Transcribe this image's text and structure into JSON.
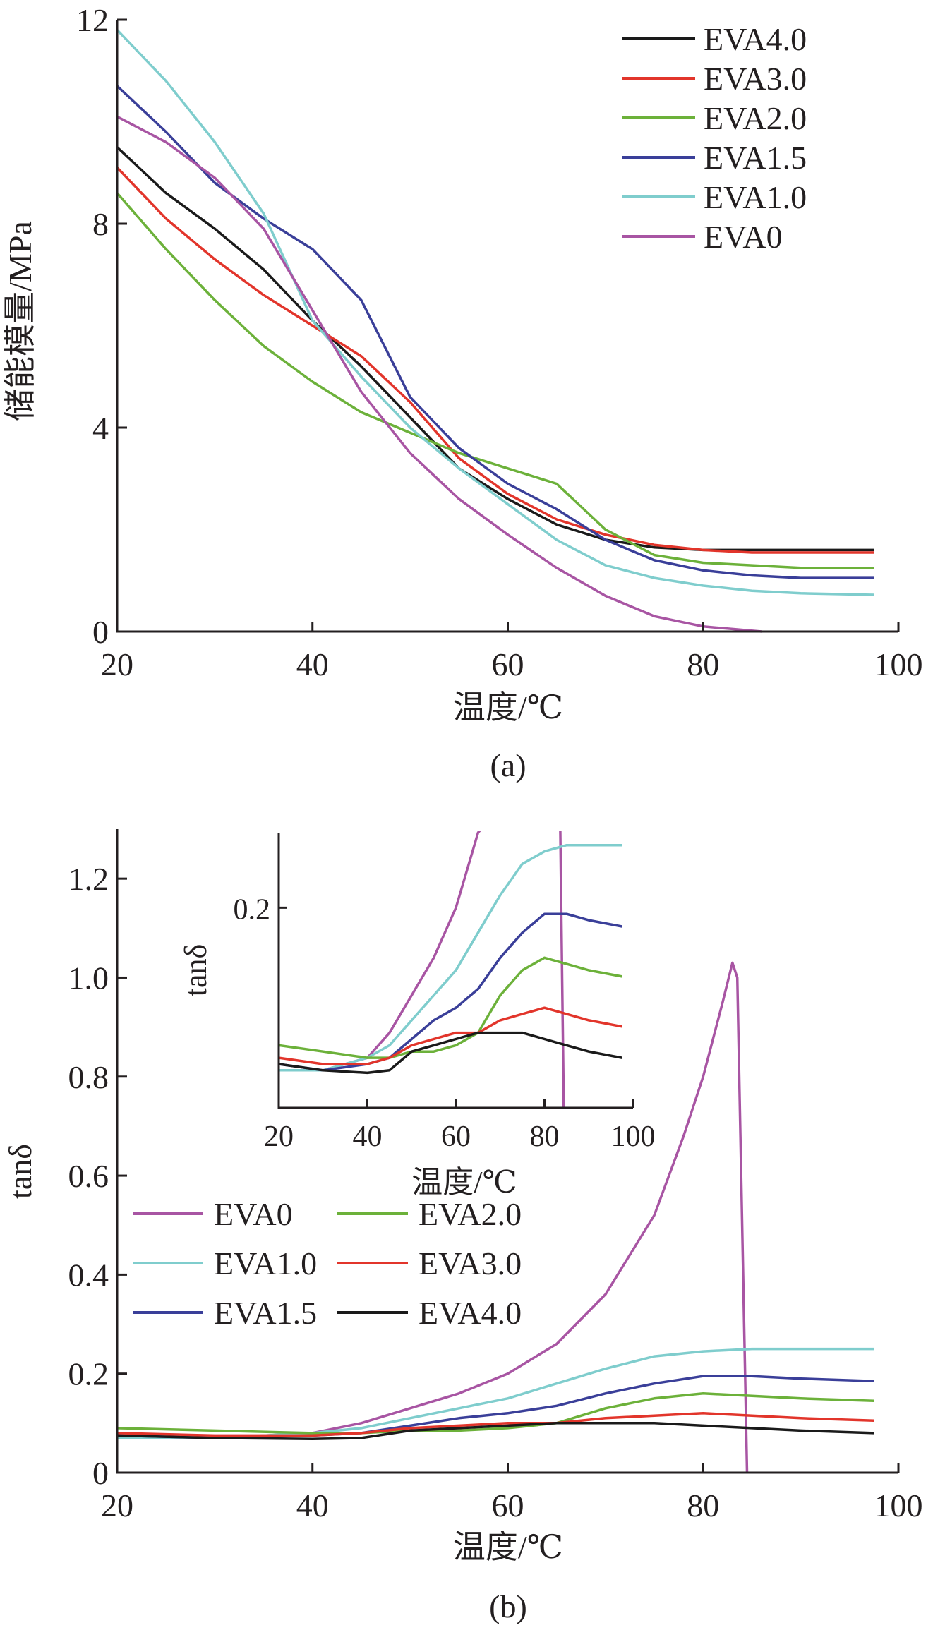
{
  "colors": {
    "EVA4.0": "#1a1a1a",
    "EVA3.0": "#e2352b",
    "EVA2.0": "#6cb13a",
    "EVA1.5": "#3a3f99",
    "EVA1.0": "#7fcdcd",
    "EVA0": "#a855a3"
  },
  "chart_data": [
    {
      "type": "line",
      "panel_label": "(a)",
      "xlabel": "温度/℃",
      "ylabel": "储能模量/MPa",
      "xlim": [
        20,
        100
      ],
      "ylim": [
        0,
        12
      ],
      "x_ticks": [
        "20",
        "40",
        "60",
        "80",
        "100"
      ],
      "y_ticks": [
        "0",
        "4",
        "8",
        "12"
      ],
      "legend_position": "top-right",
      "legend": [
        "EVA4.0",
        "EVA3.0",
        "EVA2.0",
        "EVA1.5",
        "EVA1.0",
        "EVA0"
      ],
      "series": [
        {
          "name": "EVA4.0",
          "x": [
            20,
            25,
            30,
            35,
            40,
            45,
            50,
            55,
            60,
            65,
            70,
            75,
            80,
            85,
            90,
            97.5
          ],
          "y": [
            9.5,
            8.6,
            7.9,
            7.1,
            6.1,
            5.2,
            4.2,
            3.2,
            2.6,
            2.1,
            1.8,
            1.65,
            1.6,
            1.6,
            1.6,
            1.6
          ]
        },
        {
          "name": "EVA3.0",
          "x": [
            20,
            25,
            30,
            35,
            40,
            45,
            50,
            55,
            60,
            65,
            70,
            75,
            80,
            85,
            90,
            97.5
          ],
          "y": [
            9.1,
            8.1,
            7.3,
            6.6,
            6.0,
            5.4,
            4.5,
            3.4,
            2.7,
            2.2,
            1.9,
            1.7,
            1.6,
            1.55,
            1.55,
            1.55
          ]
        },
        {
          "name": "EVA2.0",
          "x": [
            20,
            25,
            30,
            35,
            40,
            45,
            50,
            55,
            60,
            65,
            70,
            75,
            80,
            85,
            90,
            97.5
          ],
          "y": [
            8.6,
            7.5,
            6.5,
            5.6,
            4.9,
            4.3,
            3.9,
            3.5,
            3.2,
            2.9,
            2.0,
            1.5,
            1.35,
            1.3,
            1.25,
            1.25
          ]
        },
        {
          "name": "EVA1.5",
          "x": [
            20,
            25,
            30,
            35,
            40,
            45,
            50,
            55,
            60,
            65,
            70,
            75,
            80,
            85,
            90,
            97.5
          ],
          "y": [
            10.7,
            9.8,
            8.8,
            8.1,
            7.5,
            6.5,
            4.6,
            3.6,
            2.9,
            2.4,
            1.8,
            1.4,
            1.2,
            1.1,
            1.05,
            1.05
          ]
        },
        {
          "name": "EVA1.0",
          "x": [
            20,
            25,
            30,
            35,
            40,
            45,
            50,
            55,
            60,
            65,
            70,
            75,
            80,
            85,
            90,
            97.5
          ],
          "y": [
            11.8,
            10.8,
            9.6,
            8.2,
            6.1,
            5.0,
            4.0,
            3.2,
            2.5,
            1.8,
            1.3,
            1.05,
            0.9,
            0.8,
            0.75,
            0.72
          ]
        },
        {
          "name": "EVA0",
          "x": [
            20,
            25,
            30,
            35,
            40,
            45,
            50,
            55,
            60,
            65,
            70,
            75,
            80,
            83,
            86
          ],
          "y": [
            10.1,
            9.6,
            8.9,
            7.9,
            6.3,
            4.7,
            3.5,
            2.6,
            1.9,
            1.25,
            0.7,
            0.3,
            0.1,
            0.05,
            0.0
          ]
        }
      ]
    },
    {
      "type": "line",
      "panel_label": "(b)",
      "xlabel": "温度/℃",
      "ylabel": "tanδ",
      "xlim": [
        20,
        100
      ],
      "ylim": [
        0,
        1.3
      ],
      "x_ticks": [
        "20",
        "40",
        "60",
        "80",
        "100"
      ],
      "y_ticks": [
        "0",
        "0.2",
        "0.4",
        "0.6",
        "0.8",
        "1.0",
        "1.2"
      ],
      "legend_position": "lower-left",
      "legend": [
        "EVA0",
        "EVA2.0",
        "EVA1.0",
        "EVA3.0",
        "EVA1.5",
        "EVA4.0"
      ],
      "series": [
        {
          "name": "EVA0",
          "x": [
            20,
            30,
            40,
            45,
            50,
            55,
            60,
            65,
            70,
            75,
            78,
            80,
            82,
            83,
            83.5,
            84.5
          ],
          "y": [
            0.07,
            0.07,
            0.08,
            0.1,
            0.13,
            0.16,
            0.2,
            0.26,
            0.36,
            0.52,
            0.68,
            0.8,
            0.95,
            1.03,
            1.0,
            0.0
          ]
        },
        {
          "name": "EVA1.0",
          "x": [
            20,
            30,
            40,
            45,
            50,
            55,
            60,
            65,
            70,
            75,
            80,
            85,
            90,
            97.5
          ],
          "y": [
            0.07,
            0.07,
            0.08,
            0.09,
            0.11,
            0.13,
            0.15,
            0.18,
            0.21,
            0.235,
            0.245,
            0.25,
            0.25,
            0.25
          ]
        },
        {
          "name": "EVA1.5",
          "x": [
            20,
            30,
            40,
            45,
            50,
            55,
            60,
            65,
            70,
            75,
            80,
            85,
            90,
            97.5
          ],
          "y": [
            0.075,
            0.07,
            0.075,
            0.08,
            0.095,
            0.11,
            0.12,
            0.135,
            0.16,
            0.18,
            0.195,
            0.195,
            0.19,
            0.185
          ]
        },
        {
          "name": "EVA2.0",
          "x": [
            20,
            30,
            40,
            45,
            50,
            55,
            60,
            65,
            70,
            75,
            80,
            85,
            90,
            97.5
          ],
          "y": [
            0.09,
            0.085,
            0.08,
            0.08,
            0.085,
            0.085,
            0.09,
            0.1,
            0.13,
            0.15,
            0.16,
            0.155,
            0.15,
            0.145
          ]
        },
        {
          "name": "EVA3.0",
          "x": [
            20,
            30,
            40,
            45,
            50,
            55,
            60,
            65,
            70,
            75,
            80,
            85,
            90,
            97.5
          ],
          "y": [
            0.08,
            0.075,
            0.075,
            0.08,
            0.09,
            0.095,
            0.1,
            0.1,
            0.11,
            0.115,
            0.12,
            0.115,
            0.11,
            0.105
          ]
        },
        {
          "name": "EVA4.0",
          "x": [
            20,
            30,
            40,
            45,
            50,
            55,
            60,
            65,
            70,
            75,
            80,
            85,
            90,
            97.5
          ],
          "y": [
            0.075,
            0.07,
            0.068,
            0.07,
            0.085,
            0.09,
            0.095,
            0.1,
            0.1,
            0.1,
            0.095,
            0.09,
            0.085,
            0.08
          ]
        }
      ],
      "inset": {
        "type": "line",
        "xlabel": "温度/℃",
        "ylabel": "tanδ",
        "xlim": [
          20,
          100
        ],
        "ylim": [
          0.04,
          0.26
        ],
        "x_ticks": [
          "20",
          "40",
          "60",
          "80",
          "100"
        ],
        "y_ticks": [
          "0.2"
        ],
        "series_ref": "same series as panel (b)"
      }
    }
  ]
}
